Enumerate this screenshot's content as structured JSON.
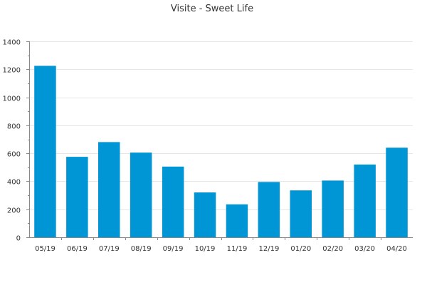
{
  "chart_data": {
    "type": "bar",
    "title": "Visite - Sweet Life",
    "xlabel": "",
    "ylabel": "",
    "categories": [
      "05/19",
      "06/19",
      "07/19",
      "08/19",
      "09/19",
      "10/19",
      "11/19",
      "12/19",
      "01/20",
      "02/20",
      "03/20",
      "04/20"
    ],
    "values": [
      1225,
      575,
      680,
      605,
      505,
      320,
      235,
      395,
      335,
      405,
      520,
      640
    ],
    "ylim": [
      0,
      1400
    ],
    "yticks": [
      0,
      200,
      400,
      600,
      800,
      1000,
      1200,
      1400
    ],
    "grid": true,
    "legend": "none",
    "bar_color": "#0096d6"
  }
}
